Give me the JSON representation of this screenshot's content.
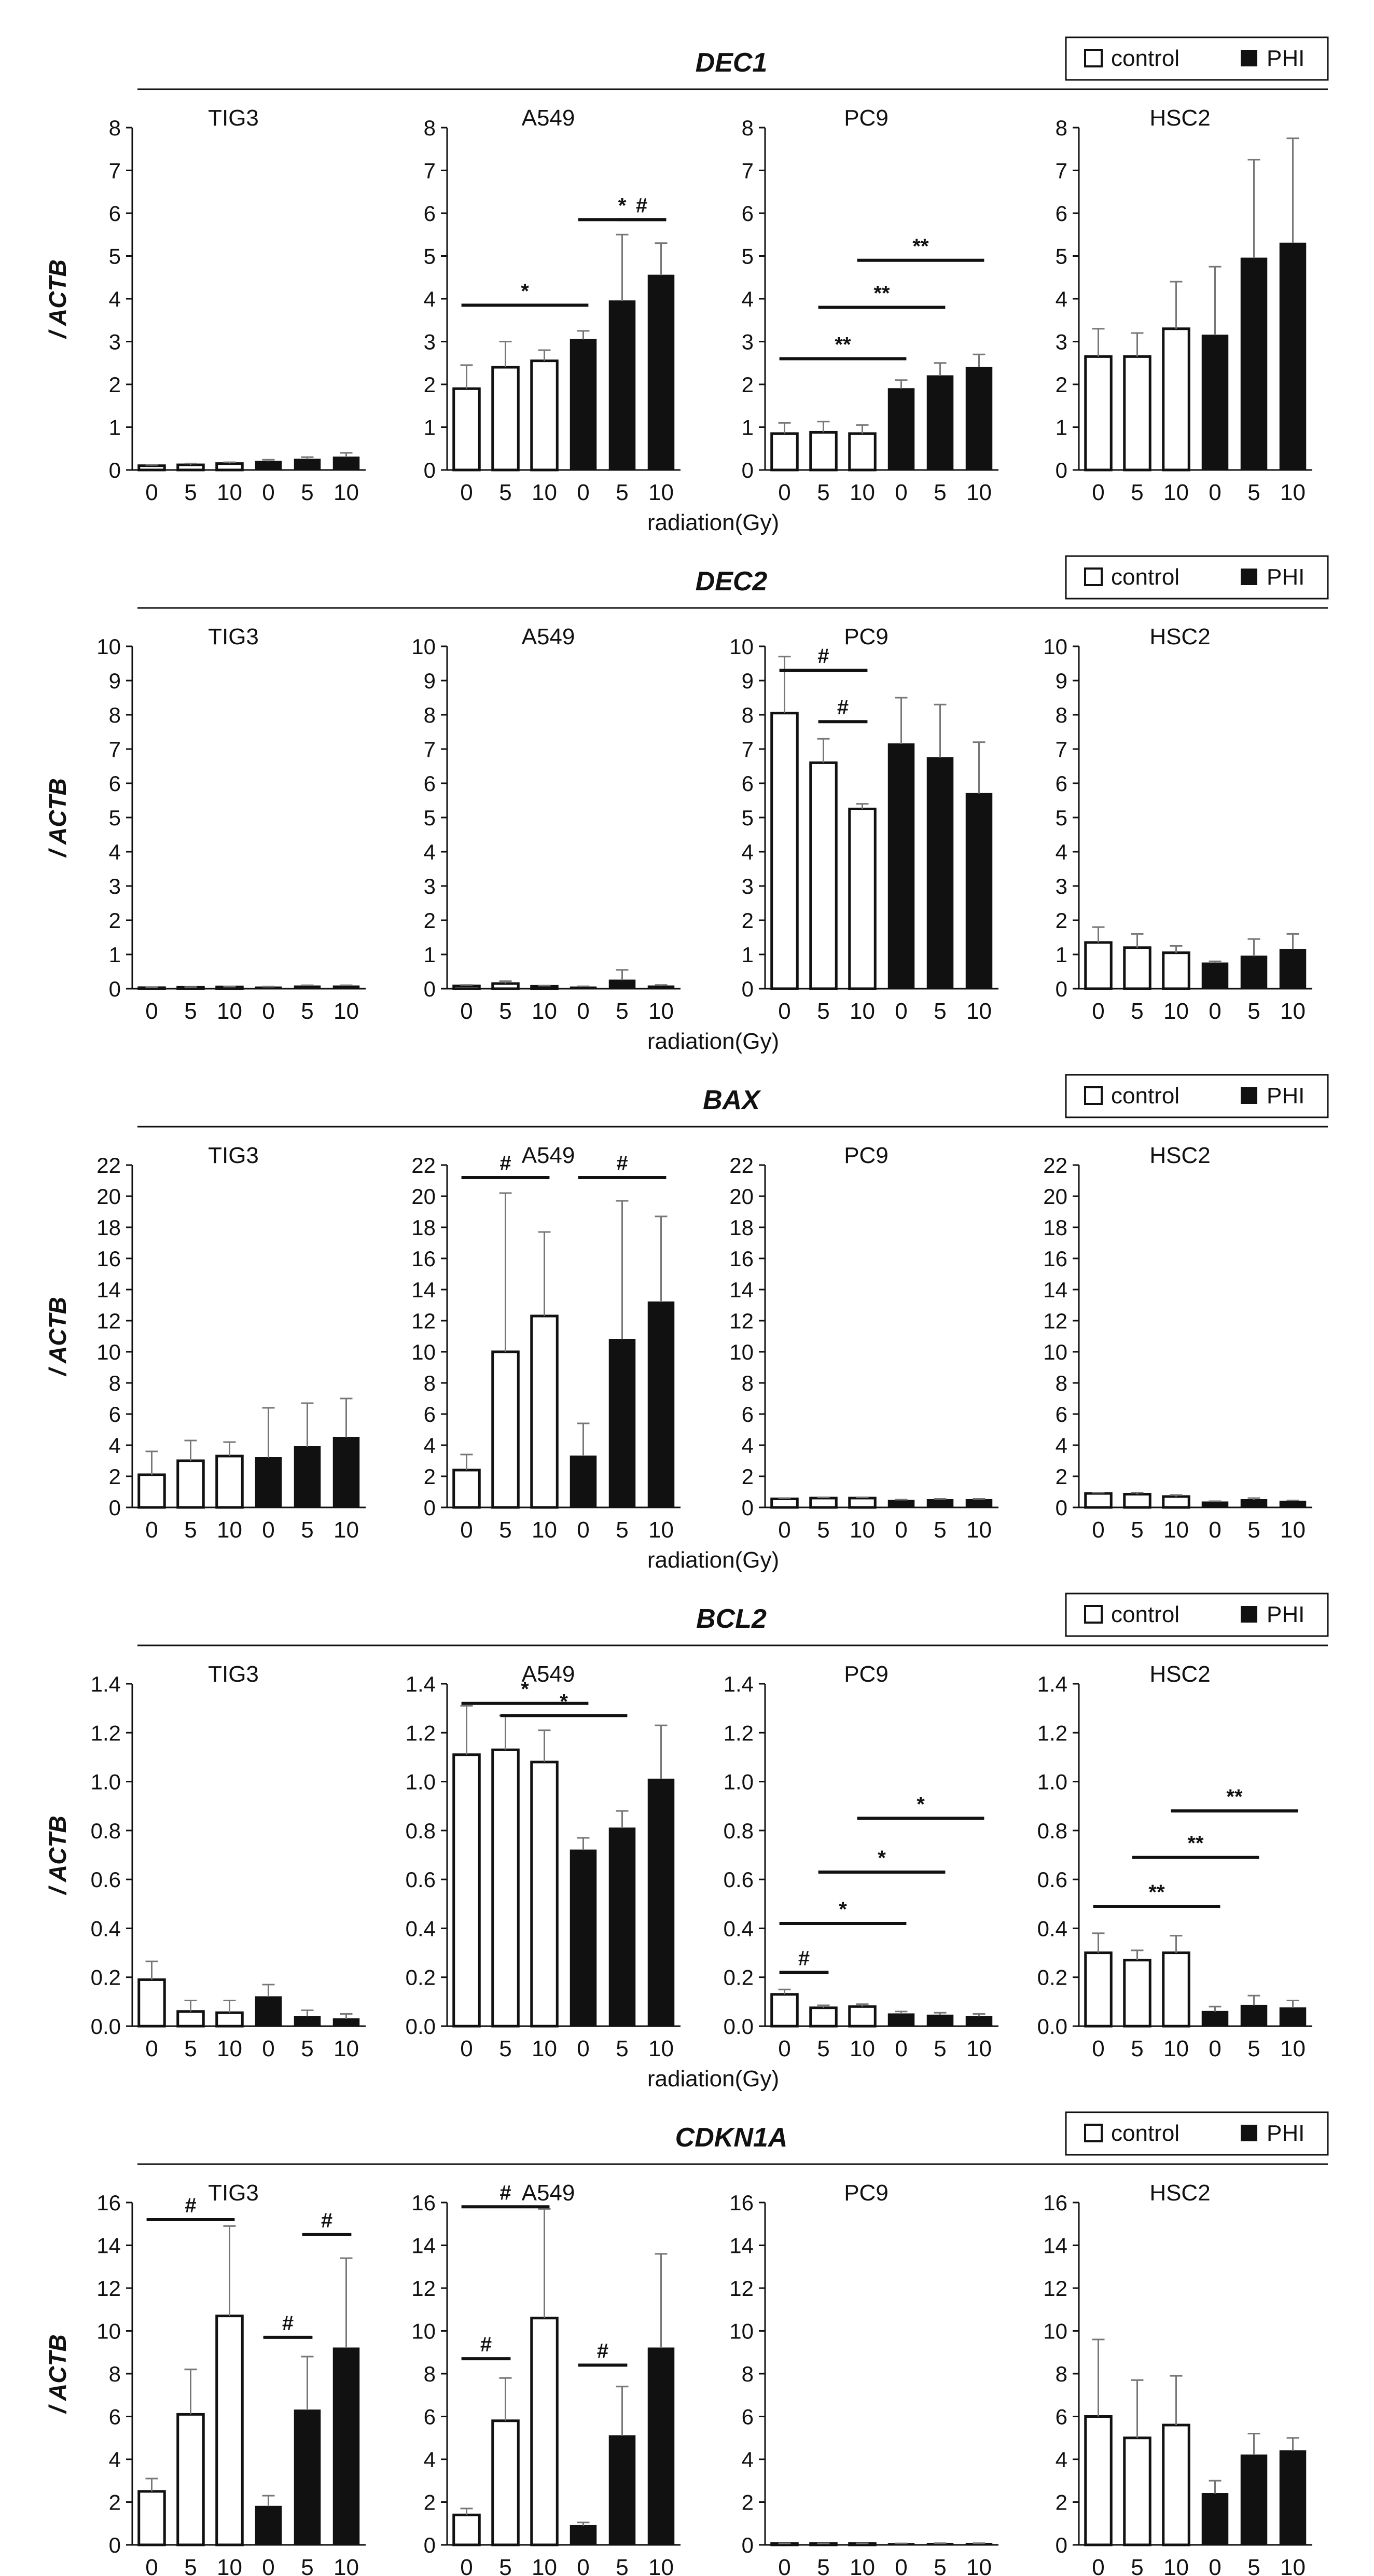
{
  "x_categories": [
    "0",
    "5",
    "10",
    "0",
    "5",
    "10"
  ],
  "x_label": "radiation(Gy)",
  "y_label": "/ ACTB",
  "legend": {
    "control": "control",
    "treated": "PHI"
  },
  "chart_data": [
    {
      "type": "bar",
      "gene": "DEC1",
      "legend": true,
      "ylim": [
        0,
        8
      ],
      "yticks": [
        "0",
        "1",
        "2",
        "3",
        "4",
        "5",
        "6",
        "7",
        "8"
      ],
      "show_xlabel": true,
      "panels": [
        {
          "cell": "TIG3",
          "values": [
            0.1,
            0.12,
            0.15,
            0.2,
            0.25,
            0.3
          ],
          "errors": [
            0.02,
            0.03,
            0.03,
            0.04,
            0.05,
            0.1
          ],
          "sig": []
        },
        {
          "cell": "A549",
          "values": [
            1.9,
            2.4,
            2.55,
            3.05,
            3.95,
            4.55
          ],
          "errors": [
            0.55,
            0.6,
            0.25,
            0.2,
            1.55,
            0.75
          ],
          "sig": [
            {
              "from": 0,
              "to": 3,
              "y": 3.85,
              "label": "*"
            },
            {
              "from": 3,
              "to": 5,
              "y": 5.85,
              "label": "*"
            },
            {
              "from": 4,
              "to": 5,
              "y": 5.85,
              "label": "#"
            }
          ]
        },
        {
          "cell": "PC9",
          "values": [
            0.85,
            0.88,
            0.85,
            1.9,
            2.2,
            2.4
          ],
          "errors": [
            0.25,
            0.25,
            0.2,
            0.2,
            0.3,
            0.3
          ],
          "sig": [
            {
              "from": 0,
              "to": 3,
              "y": 2.6,
              "label": "**"
            },
            {
              "from": 1,
              "to": 4,
              "y": 3.8,
              "label": "**"
            },
            {
              "from": 2,
              "to": 5,
              "y": 4.9,
              "label": "**"
            }
          ]
        },
        {
          "cell": "HSC2",
          "values": [
            2.65,
            2.65,
            3.3,
            3.15,
            4.95,
            5.3
          ],
          "errors": [
            0.65,
            0.55,
            1.1,
            1.6,
            2.3,
            2.45
          ],
          "sig": []
        }
      ]
    },
    {
      "type": "bar",
      "gene": "DEC2",
      "legend": true,
      "ylim": [
        0,
        10
      ],
      "yticks": [
        "0",
        "1",
        "2",
        "3",
        "4",
        "5",
        "6",
        "7",
        "8",
        "9",
        "10"
      ],
      "show_xlabel": true,
      "panels": [
        {
          "cell": "TIG3",
          "values": [
            0.03,
            0.04,
            0.05,
            0.05,
            0.08,
            0.08
          ],
          "errors": [
            0.01,
            0.01,
            0.01,
            0.01,
            0.02,
            0.02
          ],
          "sig": []
        },
        {
          "cell": "A549",
          "values": [
            0.08,
            0.15,
            0.07,
            0.05,
            0.25,
            0.08
          ],
          "errors": [
            0.03,
            0.07,
            0.02,
            0.02,
            0.3,
            0.03
          ],
          "sig": []
        },
        {
          "cell": "PC9",
          "values": [
            8.05,
            6.6,
            5.25,
            7.15,
            6.75,
            5.7
          ],
          "errors": [
            1.65,
            0.7,
            0.15,
            1.35,
            1.55,
            1.5
          ],
          "sig": [
            {
              "from": 0,
              "to": 2,
              "y": 9.3,
              "label": "#"
            },
            {
              "from": 1,
              "to": 2,
              "y": 7.8,
              "label": "#"
            }
          ]
        },
        {
          "cell": "HSC2",
          "values": [
            1.35,
            1.2,
            1.05,
            0.75,
            0.95,
            1.15
          ],
          "errors": [
            0.45,
            0.4,
            0.2,
            0.05,
            0.5,
            0.45
          ],
          "sig": []
        }
      ]
    },
    {
      "type": "bar",
      "gene": "BAX",
      "legend": true,
      "ylim": [
        0,
        22
      ],
      "yticks": [
        "0",
        "2",
        "4",
        "6",
        "8",
        "10",
        "12",
        "14",
        "16",
        "18",
        "20",
        "22"
      ],
      "show_xlabel": true,
      "panels": [
        {
          "cell": "TIG3",
          "values": [
            2.1,
            3.0,
            3.3,
            3.2,
            3.9,
            4.5
          ],
          "errors": [
            1.5,
            1.3,
            0.9,
            3.2,
            2.8,
            2.5
          ],
          "sig": []
        },
        {
          "cell": "A549",
          "values": [
            2.4,
            10.0,
            12.3,
            3.3,
            10.8,
            13.2
          ],
          "errors": [
            1.0,
            10.2,
            5.4,
            2.1,
            8.9,
            5.5
          ],
          "sig": [
            {
              "from": 0,
              "to": 2,
              "y": 21.2,
              "label": "#"
            },
            {
              "from": 3,
              "to": 5,
              "y": 21.2,
              "label": "#"
            }
          ]
        },
        {
          "cell": "PC9",
          "values": [
            0.55,
            0.6,
            0.6,
            0.45,
            0.5,
            0.5
          ],
          "errors": [
            0.05,
            0.05,
            0.05,
            0.05,
            0.05,
            0.05
          ],
          "sig": []
        },
        {
          "cell": "HSC2",
          "values": [
            0.9,
            0.85,
            0.7,
            0.35,
            0.5,
            0.4
          ],
          "errors": [
            0.05,
            0.1,
            0.1,
            0.05,
            0.1,
            0.05
          ],
          "sig": []
        }
      ]
    },
    {
      "type": "bar",
      "gene": "BCL2",
      "legend": true,
      "ylim": [
        0,
        1.4
      ],
      "yticks": [
        "0.0",
        "0.2",
        "0.4",
        "0.6",
        "0.8",
        "1.0",
        "1.2",
        "1.4"
      ],
      "show_xlabel": true,
      "panels": [
        {
          "cell": "TIG3",
          "values": [
            0.19,
            0.06,
            0.055,
            0.12,
            0.04,
            0.03
          ],
          "errors": [
            0.075,
            0.045,
            0.05,
            0.05,
            0.025,
            0.02
          ],
          "sig": []
        },
        {
          "cell": "A549",
          "values": [
            1.11,
            1.13,
            1.08,
            0.72,
            0.81,
            1.01
          ],
          "errors": [
            0.2,
            0.14,
            0.13,
            0.05,
            0.07,
            0.22
          ],
          "sig": [
            {
              "from": 0,
              "to": 3,
              "y": 1.32,
              "label": "*"
            },
            {
              "from": 1,
              "to": 4,
              "y": 1.27,
              "label": "*"
            }
          ]
        },
        {
          "cell": "PC9",
          "values": [
            0.13,
            0.075,
            0.08,
            0.05,
            0.045,
            0.04
          ],
          "errors": [
            0.02,
            0.01,
            0.01,
            0.01,
            0.01,
            0.01
          ],
          "sig": [
            {
              "from": 0,
              "to": 1,
              "y": 0.22,
              "label": "#"
            },
            {
              "from": 0,
              "to": 3,
              "y": 0.42,
              "label": "*"
            },
            {
              "from": 1,
              "to": 4,
              "y": 0.63,
              "label": "*"
            },
            {
              "from": 2,
              "to": 5,
              "y": 0.85,
              "label": "*"
            }
          ]
        },
        {
          "cell": "HSC2",
          "values": [
            0.3,
            0.27,
            0.3,
            0.06,
            0.085,
            0.075
          ],
          "errors": [
            0.08,
            0.04,
            0.07,
            0.02,
            0.04,
            0.03
          ],
          "sig": [
            {
              "from": 0,
              "to": 3,
              "y": 0.49,
              "label": "**"
            },
            {
              "from": 1,
              "to": 4,
              "y": 0.69,
              "label": "**"
            },
            {
              "from": 2,
              "to": 5,
              "y": 0.88,
              "label": "**"
            }
          ]
        }
      ]
    },
    {
      "type": "bar",
      "gene": "CDKN1A",
      "legend": true,
      "ylim": [
        0,
        16
      ],
      "yticks": [
        "0",
        "2",
        "4",
        "6",
        "8",
        "10",
        "12",
        "14",
        "16"
      ],
      "show_xlabel": true,
      "panels": [
        {
          "cell": "TIG3",
          "values": [
            2.5,
            6.1,
            10.7,
            1.8,
            6.3,
            9.2
          ],
          "errors": [
            0.6,
            2.1,
            4.2,
            0.5,
            2.5,
            4.2
          ],
          "sig": [
            {
              "from": 0,
              "to": 2,
              "y": 15.2,
              "label": "#"
            },
            {
              "from": 3,
              "to": 4,
              "y": 9.7,
              "label": "#"
            },
            {
              "from": 4,
              "to": 5,
              "y": 14.5,
              "label": "#"
            }
          ]
        },
        {
          "cell": "A549",
          "values": [
            1.4,
            5.8,
            10.6,
            0.9,
            5.1,
            9.2
          ],
          "errors": [
            0.3,
            2.0,
            5.1,
            0.15,
            2.3,
            4.4
          ],
          "sig": [
            {
              "from": 0,
              "to": 2,
              "y": 15.8,
              "label": "#"
            },
            {
              "from": 0,
              "to": 1,
              "y": 8.7,
              "label": "#"
            },
            {
              "from": 3,
              "to": 4,
              "y": 8.4,
              "label": "#"
            }
          ]
        },
        {
          "cell": "PC9",
          "values": [
            0.06,
            0.06,
            0.06,
            0.06,
            0.07,
            0.07
          ],
          "errors": [
            0.01,
            0.01,
            0.01,
            0.01,
            0.01,
            0.01
          ],
          "sig": []
        },
        {
          "cell": "HSC2",
          "values": [
            6.0,
            5.0,
            5.6,
            2.4,
            4.2,
            4.4
          ],
          "errors": [
            3.6,
            2.7,
            2.3,
            0.6,
            1.0,
            0.6
          ],
          "sig": []
        }
      ]
    }
  ]
}
